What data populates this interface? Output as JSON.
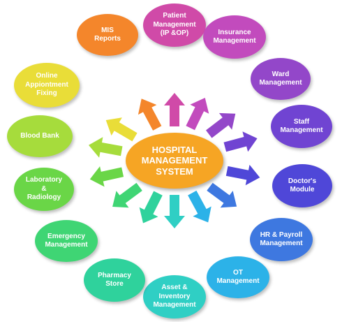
{
  "center": {
    "label": "HOSPITAL\nMANAGEMENT\nSYSTEM",
    "color": "#f6a524"
  },
  "modules": [
    {
      "id": "patient-management",
      "label": "Patient\nManagement\n(IP &OP)",
      "color": "#d04aa8"
    },
    {
      "id": "insurance-management",
      "label": "Insurance\nManagement",
      "color": "#c24bbd"
    },
    {
      "id": "ward-management",
      "label": "Ward\nManagement",
      "color": "#9347c9"
    },
    {
      "id": "staff-management",
      "label": "Staff\nManagement",
      "color": "#7044d2"
    },
    {
      "id": "doctors-module",
      "label": "Doctor's\nModule",
      "color": "#4f47d8"
    },
    {
      "id": "hr-payroll-management",
      "label": "HR & Payroll\nManagement",
      "color": "#3e78e0"
    },
    {
      "id": "ot-management",
      "label": "OT\nManagement",
      "color": "#2cb2e8"
    },
    {
      "id": "asset-inventory-management",
      "label": "Asset &\nInventory\nManagement",
      "color": "#2fcfc4"
    },
    {
      "id": "pharmacy-store",
      "label": "Pharmacy\nStore",
      "color": "#2fd29c"
    },
    {
      "id": "emergency-management",
      "label": "Emergency\nManagement",
      "color": "#3fd574"
    },
    {
      "id": "laboratory-radiology",
      "label": "Laboratory\n&\nRadiology",
      "color": "#6ad647"
    },
    {
      "id": "blood-bank",
      "label": "Blood Bank",
      "color": "#a6dc3c"
    },
    {
      "id": "online-appointment-fixing",
      "label": "Online\nAppiontment\nFixing",
      "color": "#e9dd38"
    },
    {
      "id": "mis-reports",
      "label": "MIS\nReports",
      "color": "#f4862b"
    }
  ]
}
